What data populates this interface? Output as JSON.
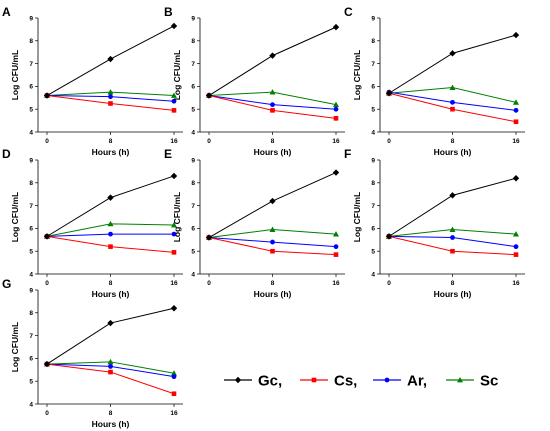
{
  "chart_data": {
    "type": "line",
    "shared": {
      "x": [
        0,
        8,
        16
      ],
      "xlabel": "Hours (h)",
      "ylabel": "Log CFU/mL",
      "xticks": [
        "0",
        "8",
        "16"
      ],
      "yticks": [
        "4",
        "5",
        "6",
        "7",
        "8",
        "9"
      ],
      "ylim": [
        4,
        9
      ]
    },
    "legend": [
      {
        "name": "Gc,",
        "color": "#000000",
        "marker": "diamond"
      },
      {
        "name": "Cs,",
        "color": "#ff0000",
        "marker": "square"
      },
      {
        "name": "Ar,",
        "color": "#0000ff",
        "marker": "circle"
      },
      {
        "name": "Sc",
        "color": "#008000",
        "marker": "triangle"
      }
    ],
    "panels": [
      {
        "label": "A",
        "series": {
          "Gc": [
            5.6,
            7.2,
            8.65
          ],
          "Cs": [
            5.6,
            5.25,
            4.95
          ],
          "Ar": [
            5.6,
            5.55,
            5.35
          ],
          "Sc": [
            5.6,
            5.75,
            5.6
          ]
        }
      },
      {
        "label": "B",
        "series": {
          "Gc": [
            5.6,
            7.35,
            8.6
          ],
          "Cs": [
            5.6,
            4.95,
            4.6
          ],
          "Ar": [
            5.6,
            5.2,
            5.0
          ],
          "Sc": [
            5.6,
            5.75,
            5.2
          ]
        }
      },
      {
        "label": "C",
        "series": {
          "Gc": [
            5.7,
            7.45,
            8.25
          ],
          "Cs": [
            5.7,
            5.0,
            4.45
          ],
          "Ar": [
            5.75,
            5.3,
            4.95
          ],
          "Sc": [
            5.7,
            5.95,
            5.3
          ]
        }
      },
      {
        "label": "D",
        "series": {
          "Gc": [
            5.65,
            7.35,
            8.3
          ],
          "Cs": [
            5.65,
            5.2,
            4.95
          ],
          "Ar": [
            5.65,
            5.75,
            5.75
          ],
          "Sc": [
            5.65,
            6.2,
            6.15
          ]
        }
      },
      {
        "label": "E",
        "series": {
          "Gc": [
            5.6,
            7.2,
            8.45
          ],
          "Cs": [
            5.6,
            5.0,
            4.85
          ],
          "Ar": [
            5.6,
            5.4,
            5.2
          ],
          "Sc": [
            5.6,
            5.95,
            5.75
          ]
        }
      },
      {
        "label": "F",
        "series": {
          "Gc": [
            5.65,
            7.45,
            8.2
          ],
          "Cs": [
            5.65,
            5.0,
            4.85
          ],
          "Ar": [
            5.65,
            5.6,
            5.2
          ],
          "Sc": [
            5.65,
            5.95,
            5.75
          ]
        }
      },
      {
        "label": "G",
        "series": {
          "Gc": [
            5.75,
            7.55,
            8.2
          ],
          "Cs": [
            5.75,
            5.4,
            4.45
          ],
          "Ar": [
            5.75,
            5.65,
            5.2
          ],
          "Sc": [
            5.75,
            5.85,
            5.35
          ]
        }
      }
    ]
  }
}
